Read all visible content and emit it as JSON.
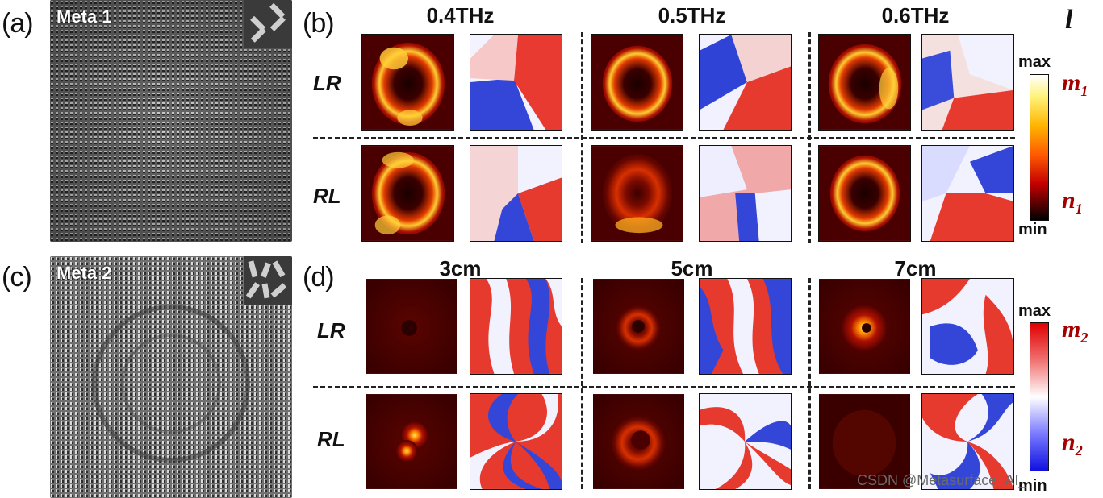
{
  "panels": {
    "a": {
      "label": "(a)",
      "meta_name": "Meta 1"
    },
    "b": {
      "label": "(b)",
      "columns": [
        "0.4THz",
        "0.5THz",
        "0.6THz"
      ],
      "rows": [
        "LR",
        "RL"
      ],
      "corner_symbol": "l",
      "colorbar": {
        "max": "max",
        "min": "min",
        "upper_symbol": "m",
        "upper_sub": "1",
        "lower_symbol": "n",
        "lower_sub": "1"
      }
    },
    "c": {
      "label": "(c)",
      "meta_name": "Meta 2"
    },
    "d": {
      "label": "(d)",
      "columns": [
        "3cm",
        "5cm",
        "7cm"
      ],
      "rows": [
        "LR",
        "RL"
      ],
      "colorbar": {
        "max": "max",
        "min": "min",
        "upper_symbol": "m",
        "upper_sub": "2",
        "lower_symbol": "n",
        "lower_sub": "2"
      }
    }
  },
  "watermark": "CSDN @Metasurface_AI_",
  "colors": {
    "phase_red": "#e8342a",
    "phase_blue": "#2b3bd6",
    "intensity_hot": "#ffd23a",
    "intensity_dark": "#2a0000"
  }
}
